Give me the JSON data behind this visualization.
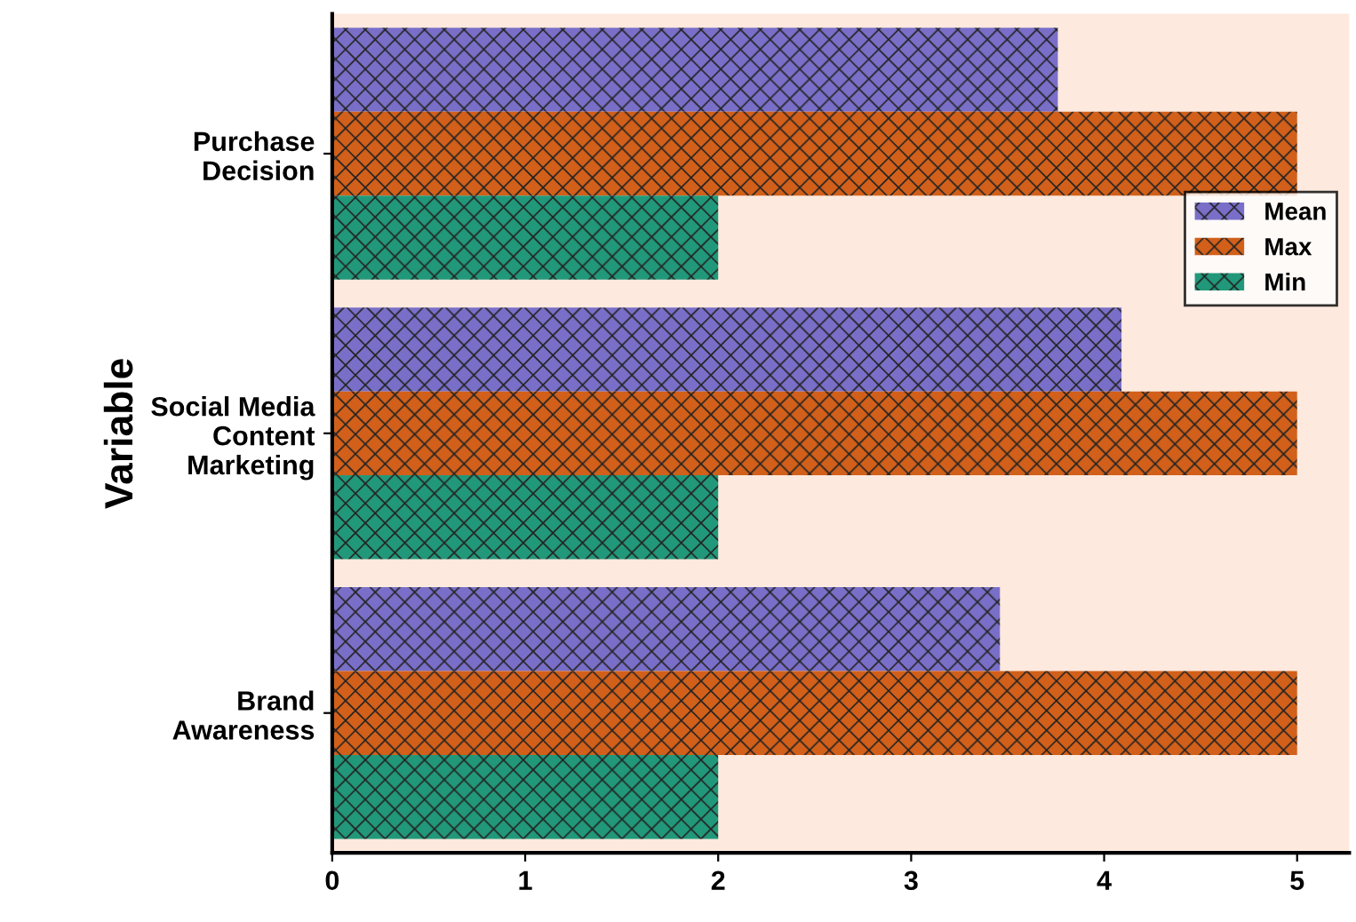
{
  "chart_data": {
    "type": "bar",
    "orientation": "horizontal",
    "ylabel": "Variable",
    "categories": [
      "Purchase\nDecision",
      "Social Media\nContent\nMarketing",
      "Brand\nAwareness"
    ],
    "series": [
      {
        "name": "Mean",
        "color": "#7a6fc8",
        "values": [
          3.76,
          4.09,
          3.46
        ]
      },
      {
        "name": "Max",
        "color": "#d2601a",
        "values": [
          5,
          5,
          5
        ]
      },
      {
        "name": "Min",
        "color": "#22987a",
        "values": [
          2,
          2,
          2
        ]
      }
    ],
    "xlim": [
      0,
      5.27
    ],
    "xticks": [
      0,
      1,
      2,
      3,
      4,
      5
    ],
    "legend": "right",
    "grid": false
  }
}
